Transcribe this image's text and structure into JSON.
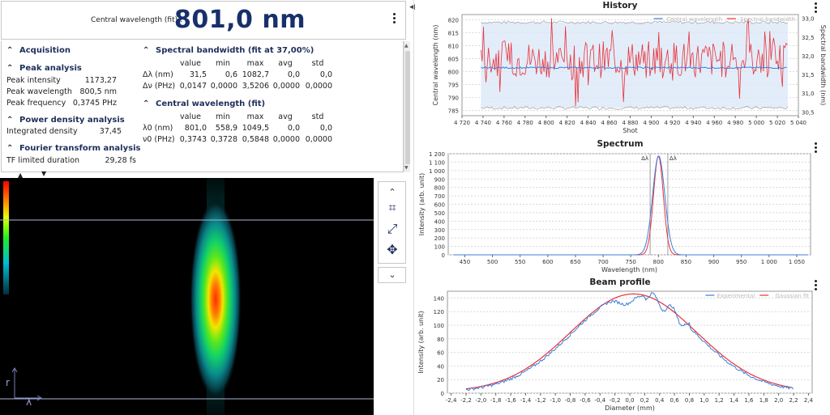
{
  "header": {
    "label": "Central wavelength (fit) :",
    "value": "801,0 nm"
  },
  "acquisition": {
    "title": "Acquisition",
    "peak": {
      "title": "Peak analysis",
      "rows": [
        {
          "label": "Peak intensity",
          "value": "1173,27"
        },
        {
          "label": "Peak wavelength",
          "value": "800,5 nm"
        },
        {
          "label": "Peak frequency",
          "value": "0,3745 PHz"
        }
      ]
    },
    "power": {
      "title": "Power density analysis",
      "rows": [
        {
          "label": "Integrated density",
          "value": "37,45"
        }
      ]
    },
    "fourier": {
      "title": "Fourier transform analysis",
      "rows": [
        {
          "label": "TF limited duration",
          "value": "29,28 fs"
        }
      ]
    }
  },
  "bandwidth": {
    "title": "Spectral bandwidth (fit at 37,00%)",
    "headers": [
      "value",
      "min",
      "max",
      "avg",
      "std"
    ],
    "rows": [
      {
        "label": "Δλ (nm)",
        "cells": [
          "31,5",
          "0,6",
          "1082,7",
          "0,0",
          "0,0"
        ]
      },
      {
        "label": "Δν (PHz)",
        "cells": [
          "0,0147",
          "0,0000",
          "3,5206",
          "0,0000",
          "0,0000"
        ]
      }
    ]
  },
  "central": {
    "title": "Central wavelength (fit)",
    "headers": [
      "value",
      "min",
      "max",
      "avg",
      "std"
    ],
    "rows": [
      {
        "label": "λ0 (nm)",
        "cells": [
          "801,0",
          "558,9",
          "1049,5",
          "0,0",
          "0,0"
        ]
      },
      {
        "label": "ν0 (PHz)",
        "cells": [
          "0,3743",
          "0,3728",
          "0,5848",
          "0,0000",
          "0,0000"
        ]
      }
    ]
  },
  "camera": {
    "axis_r": "r",
    "axis_lambda": "λ"
  },
  "colors": {
    "accent": "#17306b",
    "series_blue": "#3b7dd8",
    "series_red": "#e8323c"
  },
  "chart_data": [
    {
      "type": "line",
      "title": "History",
      "xlabel": "Shot",
      "ylabel": "Central wavelength (nm)",
      "y2label": "Spectral bandwidth (nm)",
      "legend": [
        "Central wavelength",
        "Spectral bandwidth"
      ],
      "legend_position": "top-right",
      "xlim": [
        4720,
        5040
      ],
      "ylim": [
        783,
        822
      ],
      "y2lim": [
        30.4,
        33.1
      ],
      "xticks": [
        "4 720",
        "4 740",
        "4 760",
        "4 780",
        "4 800",
        "4 820",
        "4 840",
        "4 860",
        "4 880",
        "4 900",
        "4 920",
        "4 940",
        "4 960",
        "4 980",
        "5 000",
        "5 020",
        "5 040"
      ],
      "yticks": [
        "785",
        "790",
        "795",
        "800",
        "805",
        "810",
        "815",
        "820"
      ],
      "y2ticks": [
        "30,5",
        "31,0",
        "31,5",
        "32,0",
        "32,5",
        "33,0"
      ],
      "series": [
        {
          "name": "Central wavelength",
          "approx_level": 801.5,
          "range": [
            738,
            5030
          ]
        },
        {
          "name": "Spectral bandwidth",
          "approx_level": 31.9,
          "range": [
            4738,
            5030
          ]
        }
      ],
      "band": [
        786,
        819
      ]
    },
    {
      "type": "line",
      "title": "Spectrum",
      "xlabel": "Wavelength (nm)",
      "ylabel": "Intensity (arb. unit)",
      "xlim": [
        420,
        1075
      ],
      "ylim": [
        0,
        1200
      ],
      "xticks": [
        "450",
        "500",
        "550",
        "600",
        "650",
        "700",
        "750",
        "800",
        "850",
        "900",
        "950",
        "1 000",
        "1 050"
      ],
      "yticks": [
        "0",
        "100",
        "200",
        "300",
        "400",
        "500",
        "600",
        "700",
        "800",
        "900",
        "1 000",
        "1 100",
        "1 200"
      ],
      "markers": [
        {
          "label": "Δλ",
          "x": 785
        },
        {
          "label": "Δλ",
          "x": 817
        }
      ],
      "series": [
        {
          "name": "",
          "peak": {
            "x": 800,
            "y": 1170
          },
          "fwhm": 21
        },
        {
          "name": "",
          "peak": {
            "x": 800.5,
            "y": 1173
          },
          "fwhm": 26
        }
      ]
    },
    {
      "type": "line",
      "title": "Beam profile",
      "xlabel": "Diameter (mm)",
      "ylabel": "Intensity (arb. unit)",
      "legend": [
        "Experimental",
        "Gaussian fit"
      ],
      "legend_position": "top-right",
      "xlim": [
        -2.45,
        2.45
      ],
      "ylim": [
        0,
        150
      ],
      "xticks": [
        "-2,4",
        "-2,2",
        "-2,0",
        "-1,8",
        "-1,6",
        "-1,4",
        "-1,2",
        "-1,0",
        "-0,8",
        "-0,6",
        "-0,4",
        "-0,2",
        "0,0",
        "0,2",
        "0,4",
        "0,6",
        "0,8",
        "1,0",
        "1,2",
        "1,4",
        "1,6",
        "1,8",
        "2,0",
        "2,2",
        "2,4"
      ],
      "yticks": [
        "0",
        "20",
        "40",
        "60",
        "80",
        "100",
        "120",
        "140"
      ],
      "series": [
        {
          "name": "Experimental",
          "x_range": [
            -2.2,
            2.2
          ]
        },
        {
          "name": "Gaussian fit",
          "peak": {
            "x": 0.05,
            "y": 144
          },
          "sigma": 0.85,
          "x_range": [
            -2.2,
            2.2
          ]
        }
      ]
    }
  ]
}
